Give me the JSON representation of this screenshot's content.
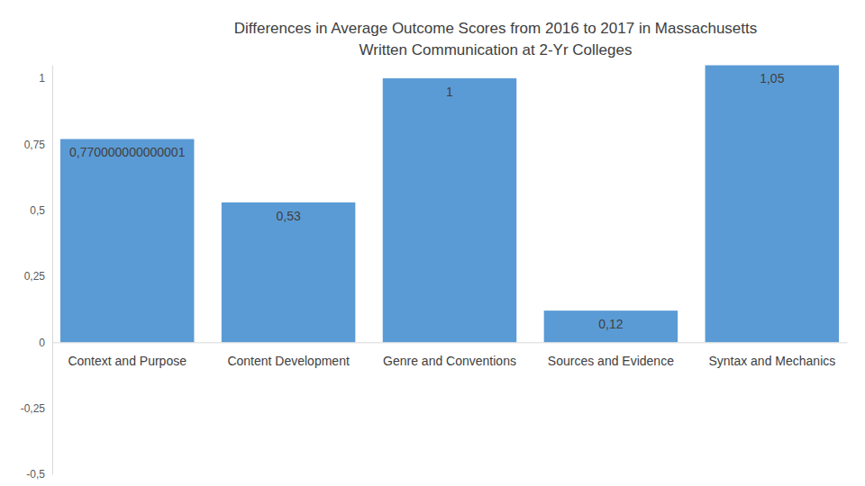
{
  "chart_data": {
    "type": "bar",
    "title": "Differences in Average Outcome Scores from 2016 to 2017 in Massachusetts\nWritten Communication at 2-Yr Colleges",
    "categories": [
      "Context and Purpose",
      "Content Development",
      "Genre and Conventions",
      "Sources and Evidence",
      "Syntax and Mechanics"
    ],
    "values": [
      0.770000000000001,
      0.53,
      1,
      0.12,
      1.05
    ],
    "value_labels": [
      "0,770000000000001",
      "0,53",
      "1",
      "0,12",
      "1,05"
    ],
    "data_labels": true,
    "color": "#5b9bd5",
    "ylim": [
      -0.5,
      1.05
    ],
    "yticks": [
      {
        "value": -0.5,
        "label": "-0,5"
      },
      {
        "value": -0.25,
        "label": "-0,25"
      },
      0,
      {
        "value": 0.25,
        "label": "0,25"
      },
      {
        "value": 0.5,
        "label": "0,5"
      },
      {
        "value": 0.75,
        "label": "0,75"
      },
      1
    ],
    "grid": false
  }
}
